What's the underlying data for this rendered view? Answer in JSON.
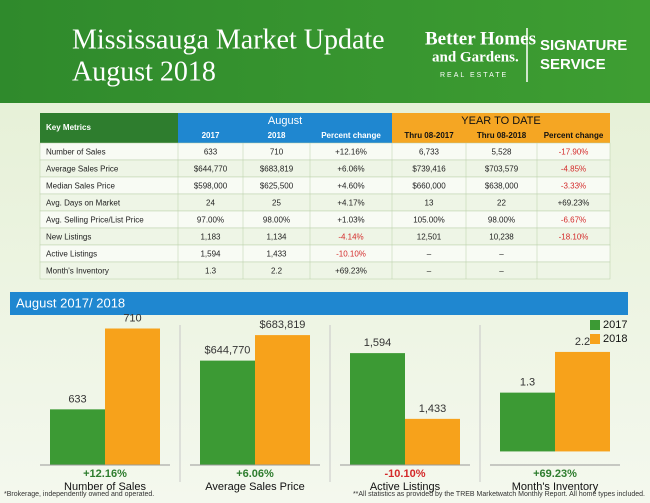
{
  "header": {
    "title_lines": [
      "Mississauga Market Update",
      "August 2018"
    ],
    "brand_lines": [
      "Better Homes",
      "and Gardens.",
      "REAL ESTATE"
    ],
    "tagline_lines": [
      "SIGNATURE",
      "SERVICE"
    ]
  },
  "table": {
    "group_headers": [
      "Key Metrics",
      "August",
      "YEAR TO DATE"
    ],
    "column_headers": [
      "2017",
      "2018",
      "Percent change",
      "Thru 08-2017",
      "Thru 08-2018",
      "Percent change"
    ],
    "rows": [
      [
        "Number of Sales",
        "633",
        "710",
        "+12.16%",
        "6,733",
        "5,528",
        "-17.90%"
      ],
      [
        "Average Sales Price",
        "$644,770",
        "$683,819",
        "+6.06%",
        "$739,416",
        "$703,579",
        "-4.85%"
      ],
      [
        "Median Sales Price",
        "$598,000",
        "$625,500",
        "+4.60%",
        "$660,000",
        "$638,000",
        "-3.33%"
      ],
      [
        "Avg. Days on Market",
        "24",
        "25",
        "+4.17%",
        "13",
        "22",
        "+69.23%"
      ],
      [
        "Avg. Selling Price/List Price",
        "97.00%",
        "98.00%",
        "+1.03%",
        "105.00%",
        "98.00%",
        "-6.67%"
      ],
      [
        "New Listings",
        "1,183",
        "1,134",
        "-4.14%",
        "12,501",
        "10,238",
        "-18.10%"
      ],
      [
        "Active Listings",
        "1,594",
        "1,433",
        "-10.10%",
        "–",
        "–",
        null
      ],
      [
        "Month's Inventory",
        "1.3",
        "2.2",
        "+69.23%",
        "–",
        "–",
        null
      ]
    ]
  },
  "section_title": "August 2017/ 2018",
  "chart_data": [
    {
      "type": "bar",
      "title": "Number of Sales",
      "change": "+12.16%",
      "ylim": [
        580,
        720
      ],
      "series": [
        {
          "color": "#3c9a34",
          "values": [
            633
          ]
        },
        {
          "color": "#f7a21b",
          "values": [
            710
          ]
        }
      ]
    },
    {
      "type": "bar",
      "title": "Average Sales Price",
      "change": "+6.06%",
      "ylim": [
        485000,
        710000
      ],
      "series": [
        {
          "color": "#3c9a34",
          "values": [
            644770
          ],
          "value_labels": [
            "$644,770"
          ]
        },
        {
          "color": "#f7a21b",
          "values": [
            683819
          ],
          "value_labels": [
            "$683,819"
          ]
        }
      ]
    },
    {
      "type": "bar",
      "title": "Active Listings",
      "change": "-10.10%",
      "ylim": [
        1320,
        1680
      ],
      "series": [
        {
          "color": "#3c9a34",
          "values": [
            1594
          ],
          "value_labels": [
            "1,594"
          ]
        },
        {
          "color": "#f7a21b",
          "values": [
            1433
          ],
          "value_labels": [
            "1,433"
          ]
        }
      ]
    },
    {
      "type": "bar",
      "title": "Month's Inventory",
      "change": "+69.23%",
      "ylim": [
        -0.3,
        2.95
      ],
      "series": [
        {
          "name": "2017",
          "color": "#3c9a34",
          "values": [
            1.3
          ]
        },
        {
          "name": "2018",
          "color": "#f7a21b",
          "values": [
            2.2
          ]
        }
      ]
    }
  ],
  "footer": {
    "left": "*Brokerage, independently owned and operated.",
    "right": "**All statistics as provided by the TREB Marketwatch Monthly Report. All home types included."
  }
}
